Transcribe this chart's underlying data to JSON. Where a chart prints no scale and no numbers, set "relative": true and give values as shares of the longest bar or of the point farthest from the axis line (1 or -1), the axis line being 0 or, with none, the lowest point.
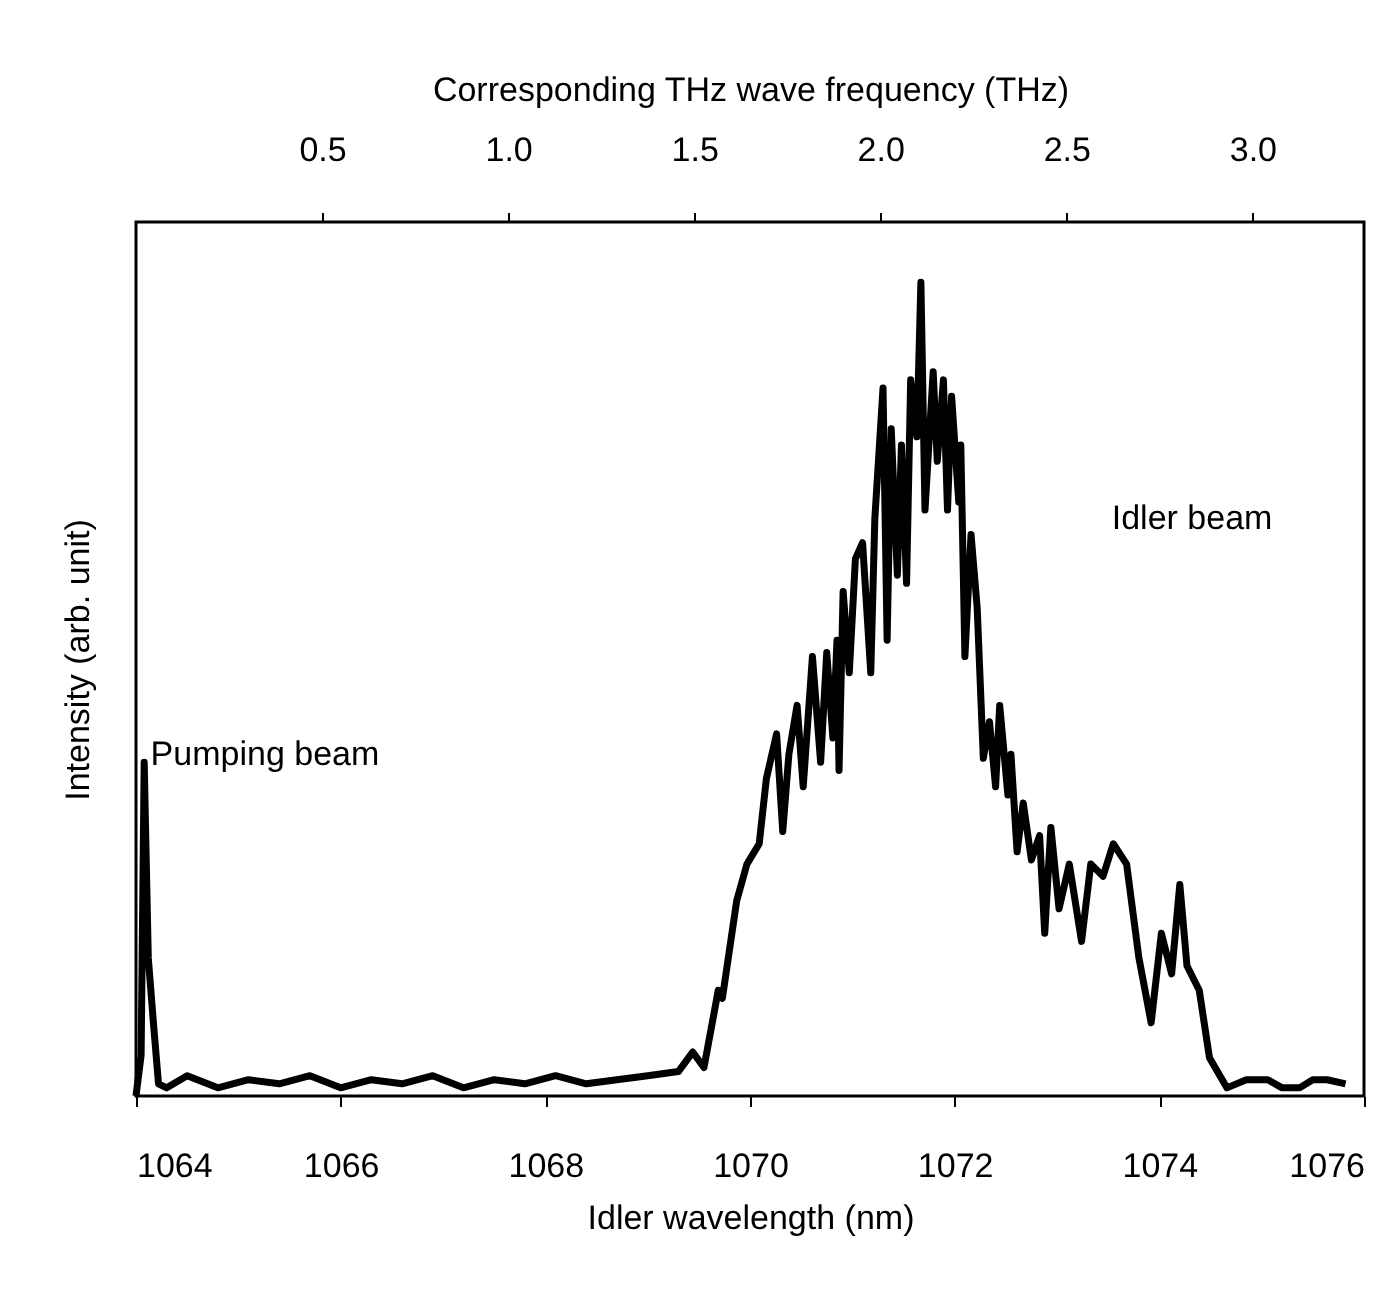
{
  "chart_data": {
    "type": "line",
    "relative": true,
    "xlabel": "Idler wavelength (nm)",
    "ylabel": "Intensity (arb. unit)",
    "x2label": "Corresponding THz wave frequency (THz)",
    "xlim": [
      1064,
      1076
    ],
    "xticks": [
      1064,
      1066,
      1068,
      1070,
      1072,
      1074,
      1076
    ],
    "x2lim": [
      0.0,
      3.3
    ],
    "x2ticks": [
      {
        "value": 0.5,
        "label": "0.5"
      },
      {
        "value": 1.0,
        "label": "1.0"
      },
      {
        "value": 1.5,
        "label": "1.5"
      },
      {
        "value": 2.0,
        "label": "2.0"
      },
      {
        "value": 2.5,
        "label": "2.5"
      },
      {
        "value": 3.0,
        "label": "3.0"
      }
    ],
    "grid": false,
    "marker": "none",
    "line_style": "solid",
    "annotations": [
      "Pumping beam",
      "Idler beam"
    ],
    "series": [
      {
        "color": "#000000",
        "x": [
          1064.0,
          1064.05,
          1064.08,
          1064.12,
          1064.17,
          1064.22,
          1064.3,
          1064.5,
          1064.8,
          1065.1,
          1065.4,
          1065.7,
          1066.0,
          1066.3,
          1066.6,
          1066.9,
          1067.2,
          1067.5,
          1067.8,
          1068.1,
          1068.4,
          1068.7,
          1069.0,
          1069.3,
          1069.44,
          1069.55,
          1069.69,
          1069.73,
          1069.87,
          1069.97,
          1070.09,
          1070.16,
          1070.26,
          1070.32,
          1070.38,
          1070.46,
          1070.52,
          1070.61,
          1070.69,
          1070.75,
          1070.81,
          1070.85,
          1070.87,
          1070.91,
          1070.97,
          1071.03,
          1071.1,
          1071.18,
          1071.22,
          1071.3,
          1071.34,
          1071.38,
          1071.44,
          1071.48,
          1071.53,
          1071.57,
          1071.63,
          1071.67,
          1071.71,
          1071.79,
          1071.83,
          1071.89,
          1071.93,
          1071.97,
          1072.04,
          1072.06,
          1072.1,
          1072.16,
          1072.22,
          1072.28,
          1072.34,
          1072.4,
          1072.44,
          1072.52,
          1072.55,
          1072.61,
          1072.67,
          1072.75,
          1072.83,
          1072.88,
          1072.94,
          1073.02,
          1073.12,
          1073.24,
          1073.33,
          1073.45,
          1073.55,
          1073.68,
          1073.8,
          1073.92,
          1074.02,
          1074.12,
          1074.2,
          1074.27,
          1074.39,
          1074.49,
          1074.66,
          1074.85,
          1075.06,
          1075.2,
          1075.37,
          1075.5,
          1075.64,
          1075.82
        ],
        "values": [
          0.0,
          0.05,
          0.41,
          0.17,
          0.09,
          0.015,
          0.01,
          0.025,
          0.01,
          0.02,
          0.015,
          0.025,
          0.01,
          0.02,
          0.015,
          0.025,
          0.01,
          0.02,
          0.015,
          0.025,
          0.015,
          0.02,
          0.025,
          0.03,
          0.054,
          0.035,
          0.13,
          0.12,
          0.24,
          0.285,
          0.31,
          0.39,
          0.445,
          0.325,
          0.42,
          0.48,
          0.38,
          0.54,
          0.41,
          0.545,
          0.44,
          0.56,
          0.4,
          0.62,
          0.52,
          0.66,
          0.68,
          0.52,
          0.71,
          0.87,
          0.56,
          0.82,
          0.64,
          0.8,
          0.63,
          0.88,
          0.81,
          1.0,
          0.72,
          0.89,
          0.78,
          0.88,
          0.72,
          0.86,
          0.73,
          0.8,
          0.54,
          0.69,
          0.6,
          0.415,
          0.46,
          0.38,
          0.48,
          0.37,
          0.42,
          0.3,
          0.36,
          0.29,
          0.32,
          0.2,
          0.33,
          0.23,
          0.285,
          0.19,
          0.285,
          0.27,
          0.31,
          0.285,
          0.17,
          0.09,
          0.2,
          0.15,
          0.26,
          0.16,
          0.13,
          0.047,
          0.01,
          0.02,
          0.02,
          0.01,
          0.01,
          0.02,
          0.02,
          0.015
        ]
      }
    ]
  }
}
